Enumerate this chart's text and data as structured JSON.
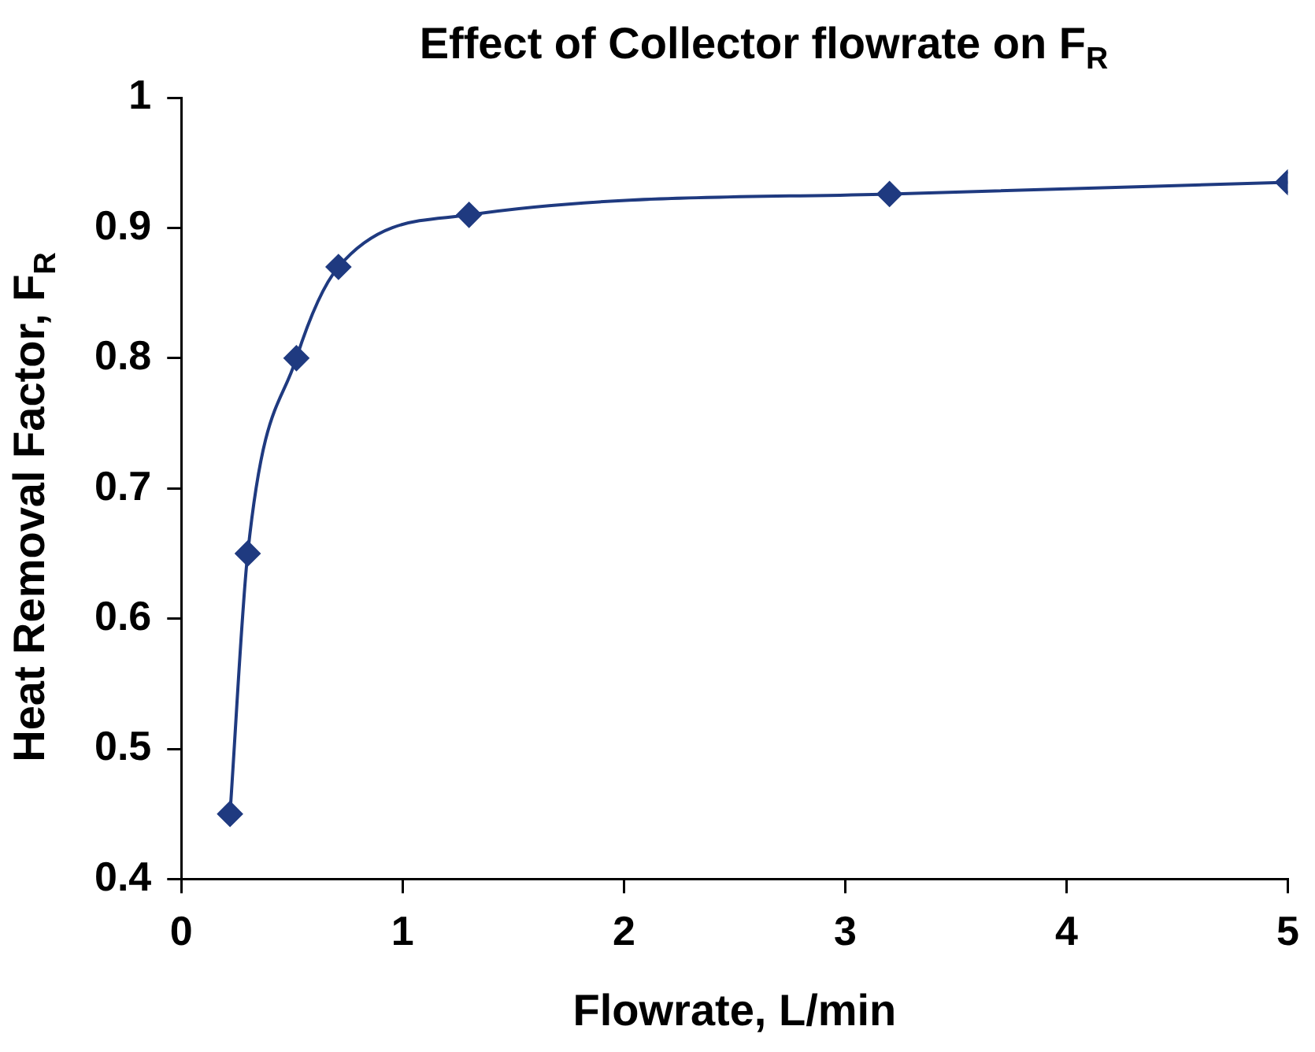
{
  "chart_data": {
    "type": "line",
    "title": "Effect of Collector flowrate on F$_{R}$",
    "xlabel": "Flowrate, L/min",
    "ylabel": "Heat Removal Factor, F$_{R}$",
    "x": [
      0.22,
      0.3,
      0.52,
      0.71,
      1.3,
      3.2,
      5
    ],
    "series": [
      {
        "color": "#1f3a80",
        "values": [
          0.45,
          0.65,
          0.8,
          0.87,
          0.91,
          0.926,
          0.935
        ]
      }
    ],
    "xlim": [
      0,
      5
    ],
    "xticks": [
      0,
      1,
      2,
      3,
      4,
      5
    ],
    "ylim": [
      0.4,
      1
    ],
    "yticks": [
      0.4,
      0.5,
      0.6,
      0.7,
      0.8,
      0.9,
      1
    ],
    "grid": false,
    "legend": false,
    "marker": "diamond",
    "line_style": "solid"
  }
}
